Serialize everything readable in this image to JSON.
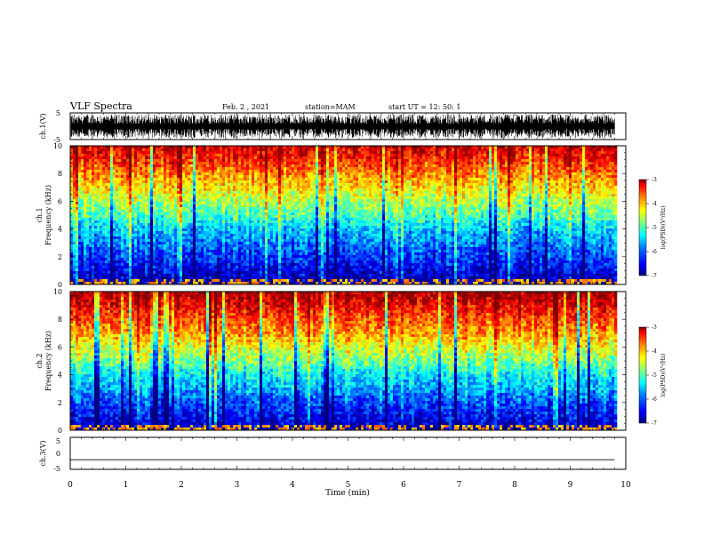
{
  "header": {
    "title": "VLF Spectra",
    "date": "Feb. 2 , 2021",
    "station": "station=MAM",
    "start": "start UT =  12: 50: 1"
  },
  "chart_data": [
    {
      "type": "line",
      "panel": "ch1-waveform",
      "ylabel": "ch.1(V)",
      "ylim": [
        -5,
        5
      ],
      "yticks": [
        "5",
        "-5"
      ],
      "xlim": [
        0,
        10
      ],
      "description_of_data": "dense impulsive waveform spanning roughly -4 to +4 V across 0-9.8 min"
    },
    {
      "type": "heatmap",
      "panel": "ch1-spectrogram",
      "ylabel_line1": "ch.1",
      "ylabel_line2": "Frequency (kHz)",
      "ylim": [
        0,
        10
      ],
      "yticks": [
        "0",
        "2",
        "4",
        "6",
        "8",
        "10"
      ],
      "xlim": [
        0,
        10
      ],
      "data_xmax": 9.8,
      "colorbar": {
        "label": "log(PSD)(V²/Hz)",
        "ticks": [
          "-3",
          "-4",
          "-5",
          "-6",
          "-7"
        ],
        "range": [
          -7,
          -3
        ]
      },
      "psd_profile_by_freq_kHz": [
        [
          0,
          -6.9
        ],
        [
          1,
          -6.6
        ],
        [
          2,
          -6.3
        ],
        [
          3,
          -6.0
        ],
        [
          4,
          -5.7
        ],
        [
          5,
          -5.2
        ],
        [
          6,
          -4.8
        ],
        [
          7,
          -4.4
        ],
        [
          8,
          -4.0
        ],
        [
          9,
          -3.6
        ],
        [
          10,
          -3.3
        ]
      ]
    },
    {
      "type": "heatmap",
      "panel": "ch2-spectrogram",
      "ylabel_line1": "ch.2",
      "ylabel_line2": "Frequency (kHz)",
      "ylim": [
        0,
        10
      ],
      "yticks": [
        "0",
        "2",
        "4",
        "6",
        "8",
        "10"
      ],
      "xlim": [
        0,
        10
      ],
      "data_xmax": 9.8,
      "colorbar": {
        "label": "log(PSD)(V²/Hz)",
        "ticks": [
          "-3",
          "-4",
          "-5",
          "-6",
          "-7"
        ],
        "range": [
          -7,
          -3
        ]
      },
      "psd_profile_by_freq_kHz": [
        [
          0,
          -6.8
        ],
        [
          1,
          -6.5
        ],
        [
          2,
          -6.2
        ],
        [
          3,
          -5.8
        ],
        [
          4,
          -5.5
        ],
        [
          5,
          -5.0
        ],
        [
          6,
          -4.6
        ],
        [
          7,
          -4.1
        ],
        [
          8,
          -3.8
        ],
        [
          9,
          -3.4
        ],
        [
          10,
          -3.1
        ]
      ]
    },
    {
      "type": "line",
      "panel": "ch3-waveform",
      "ylabel": "ch.3(V)",
      "ylim": [
        -5,
        5
      ],
      "yticks": [
        "5",
        "0",
        "-5"
      ],
      "xlim": [
        0,
        10
      ],
      "x": [
        0,
        9.8
      ],
      "y": [
        -2,
        -2
      ]
    }
  ],
  "xaxis": {
    "label": "Time (min)",
    "ticks": [
      "0",
      "1",
      "2",
      "3",
      "4",
      "5",
      "6",
      "7",
      "8",
      "9",
      "10"
    ],
    "range": [
      0,
      10
    ]
  },
  "colors": {
    "jet_scale": [
      "#00007f",
      "#0000ff",
      "#0080ff",
      "#00ffff",
      "#80ff80",
      "#ffff00",
      "#ff8000",
      "#ff0000",
      "#7f0000"
    ]
  }
}
